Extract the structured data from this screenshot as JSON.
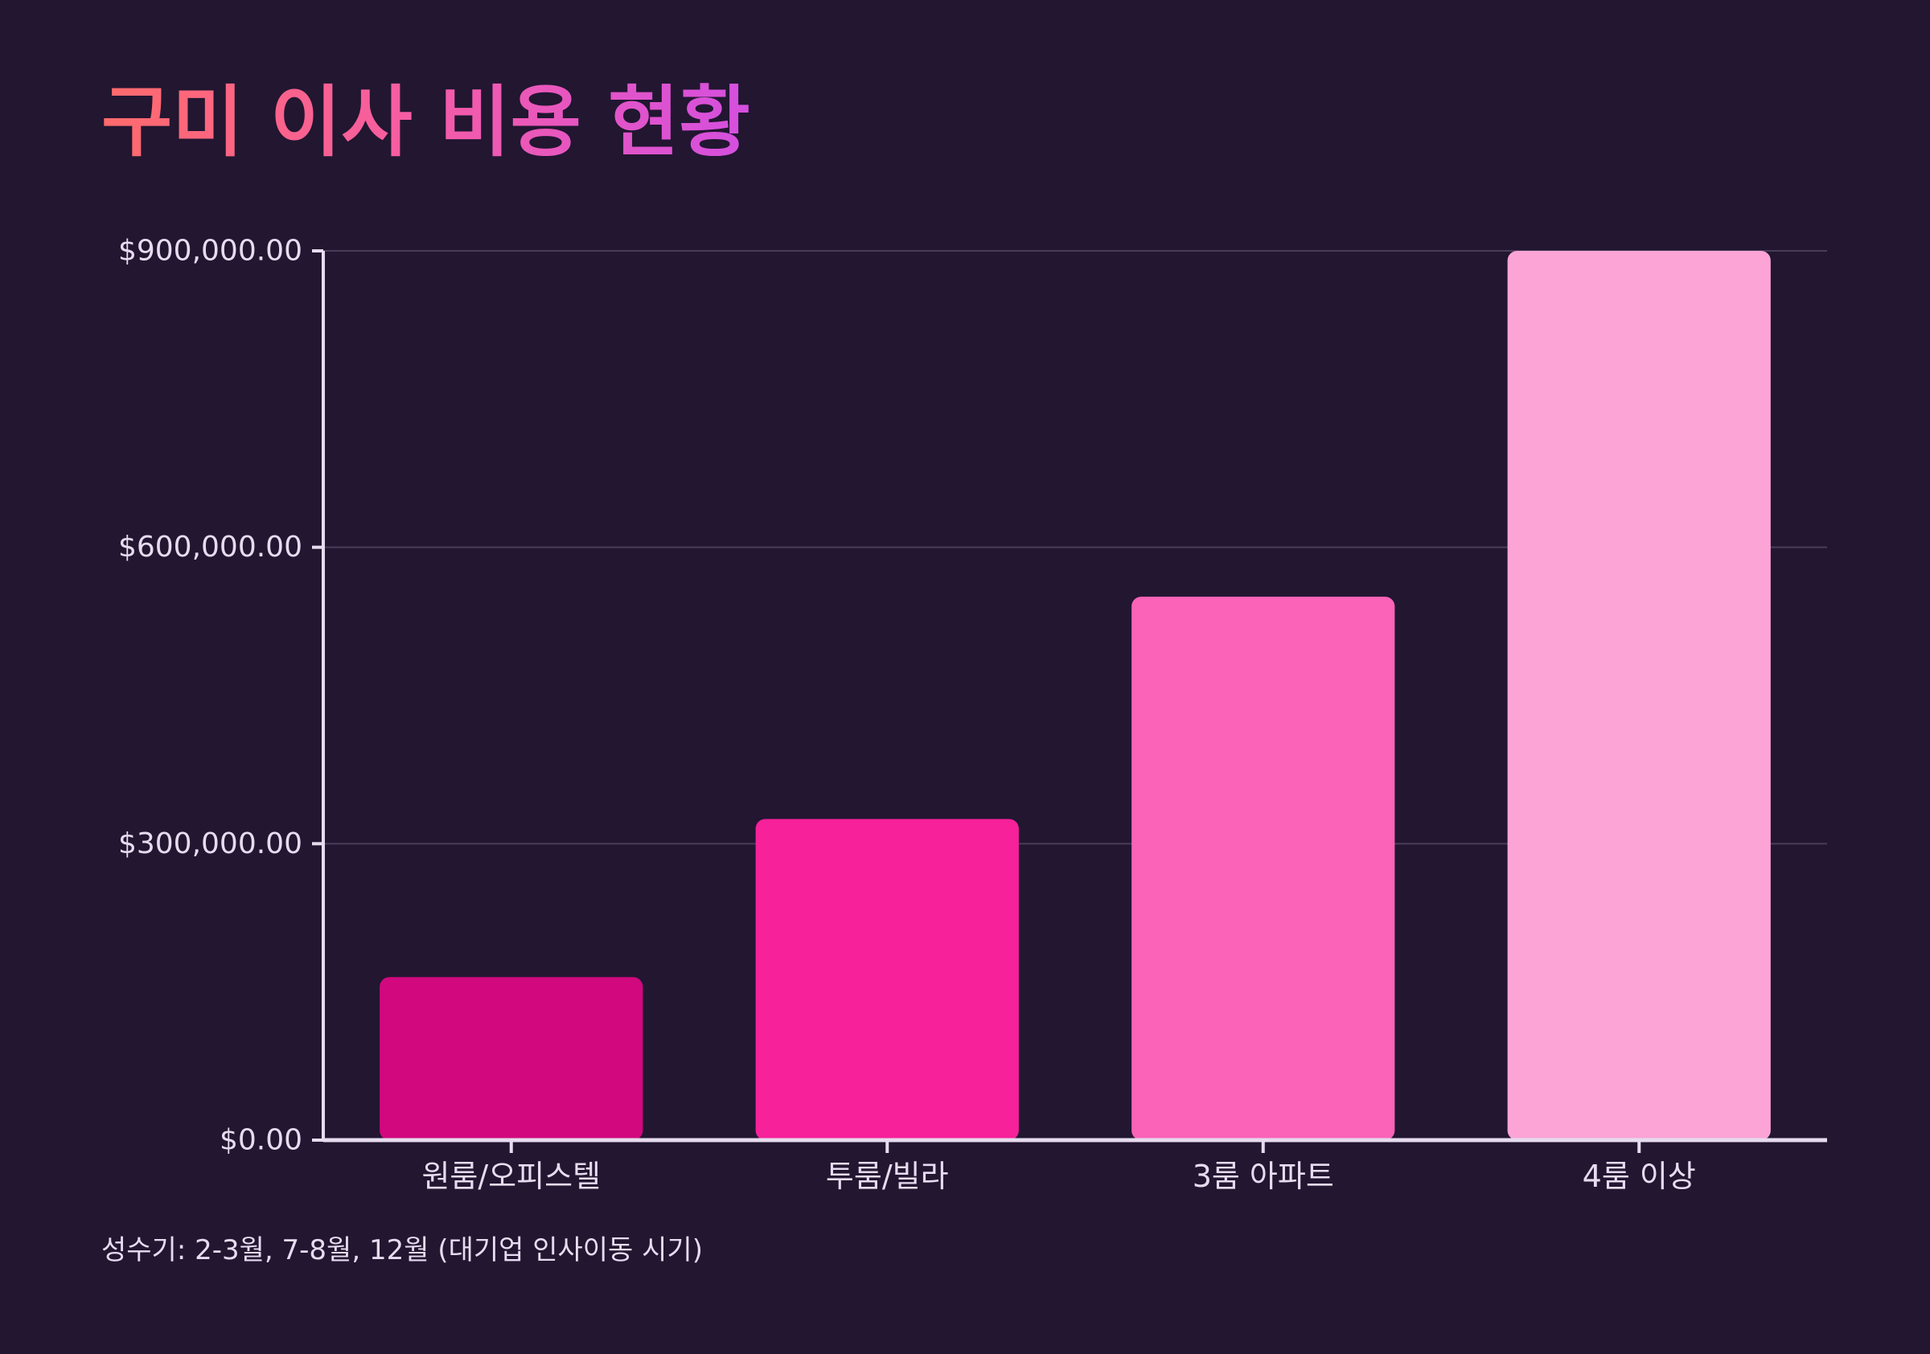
{
  "chart_data": {
    "type": "bar",
    "title": "구미 이사 비용 현황",
    "categories": [
      "원룸/오피스텔",
      "투룸/빌라",
      "3룸 아파트",
      "4룸 이상"
    ],
    "values": [
      165000,
      325000,
      550000,
      900000
    ],
    "bar_colors": [
      "#d1087e",
      "#f7219a",
      "#fb63b8",
      "#fba4d5"
    ],
    "ylim": [
      0,
      900000
    ],
    "yticks": [
      0,
      300000,
      600000,
      900000
    ],
    "ytick_labels": [
      "$0.00",
      "$300,000.00",
      "$600,000.00",
      "$900,000.00"
    ],
    "xlabel": "",
    "ylabel": "",
    "grid": true,
    "footnote": "성수기: 2-3월, 7-8월, 12월 (대기업 인사이동 시기)"
  },
  "colors": {
    "background": "#221631",
    "title_gradient": [
      "#ff6b6b",
      "#f55ca6",
      "#d44fe0"
    ],
    "axis": "#e6dcef",
    "grid": "#4a3d59",
    "text": "#e6dcef"
  }
}
